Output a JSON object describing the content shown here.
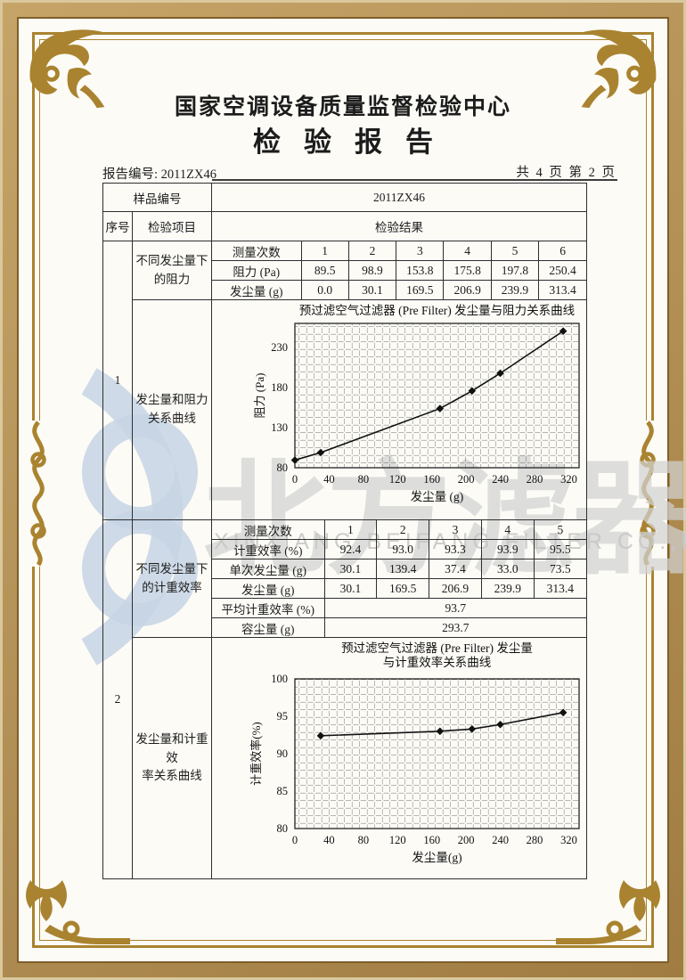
{
  "header": {
    "org_title": "国家空调设备质量监督检验中心",
    "report_title": "检验报告",
    "report_no": "报告编号: 2011ZX46",
    "page_info": "共 4 页 第 2 页"
  },
  "sample_row": {
    "label": "样品编号",
    "value": "2011ZX46"
  },
  "columns": {
    "seq": "序号",
    "item": "检验项目",
    "result": "检验结果"
  },
  "sections": [
    {
      "seq": "1",
      "item_top": "不同发尘量下\n的阻力",
      "item_bottom": "发尘量和阻力\n关系曲线",
      "table": {
        "label_col_width": 100,
        "rows": [
          {
            "label": "测量次数",
            "values": [
              "1",
              "2",
              "3",
              "4",
              "5",
              "6"
            ]
          },
          {
            "label": "阻力 (Pa)",
            "values": [
              "89.5",
              "98.9",
              "153.8",
              "175.8",
              "197.8",
              "250.4"
            ]
          },
          {
            "label": "发尘量 (g)",
            "values": [
              "0.0",
              "30.1",
              "169.5",
              "206.9",
              "239.9",
              "313.4"
            ]
          }
        ]
      }
    },
    {
      "seq": "2",
      "item_top": "不同发尘量下\n的计重效率",
      "item_bottom": "发尘量和计重效\n率关系曲线",
      "table": {
        "label_col_width": 126,
        "rows": [
          {
            "label": "测量次数",
            "values": [
              "1",
              "2",
              "3",
              "4",
              "5"
            ]
          },
          {
            "label": "计重效率 (%)",
            "values": [
              "92.4",
              "93.0",
              "93.3",
              "93.9",
              "95.5"
            ]
          },
          {
            "label": "单次发尘量 (g)",
            "values": [
              "30.1",
              "139.4",
              "37.4",
              "33.0",
              "73.5"
            ]
          },
          {
            "label": "发尘量 (g)",
            "values": [
              "30.1",
              "169.5",
              "206.9",
              "239.9",
              "313.4"
            ]
          },
          {
            "label": "平均计重效率 (%)",
            "values": [
              "93.7"
            ],
            "merged": true
          },
          {
            "label": "容尘量 (g)",
            "values": [
              "293.7"
            ],
            "merged": true
          }
        ]
      }
    }
  ],
  "chart_data": [
    {
      "type": "line",
      "title_lines": [
        "预过滤空气过滤器 (Pre Filter) 发尘量与阻力关系曲线"
      ],
      "xlabel": "发尘量 (g)",
      "ylabel": "阻力 (Pa)",
      "x": [
        0,
        30.1,
        169.5,
        206.9,
        239.9,
        313.4
      ],
      "y": [
        89.5,
        98.9,
        153.8,
        175.8,
        197.8,
        250.4
      ],
      "xlim": [
        0,
        332
      ],
      "ylim": [
        80,
        260
      ],
      "xticks": [
        0,
        40,
        80,
        120,
        160,
        200,
        240,
        280,
        320
      ],
      "yticks": [
        80,
        130,
        180,
        230
      ],
      "grid": true,
      "marker": "diamond",
      "legend_position": "none"
    },
    {
      "type": "line",
      "title_lines": [
        "预过滤空气过滤器 (Pre Filter) 发尘量",
        "与计重效率关系曲线"
      ],
      "xlabel": "发尘量(g)",
      "ylabel": "计重效率(%)",
      "x": [
        30.1,
        169.5,
        206.9,
        239.9,
        313.4
      ],
      "y": [
        92.4,
        93.0,
        93.3,
        93.9,
        95.5
      ],
      "xlim": [
        0,
        332
      ],
      "ylim": [
        80,
        100
      ],
      "xticks": [
        0,
        40,
        80,
        120,
        160,
        200,
        240,
        280,
        320
      ],
      "yticks": [
        80,
        85,
        90,
        95,
        100
      ],
      "grid": true,
      "marker": "diamond",
      "legend_position": "none"
    }
  ],
  "watermark": {
    "cn_text": "北方滤器",
    "en_text": "XINXIANG BEIFANG FILTER CO.,LTD.",
    "logo_color": "#c6d3e4",
    "text_color": "#d2d2d2"
  },
  "border": {
    "ornament_color": "#a9832f",
    "band_color": "#b3905a"
  }
}
